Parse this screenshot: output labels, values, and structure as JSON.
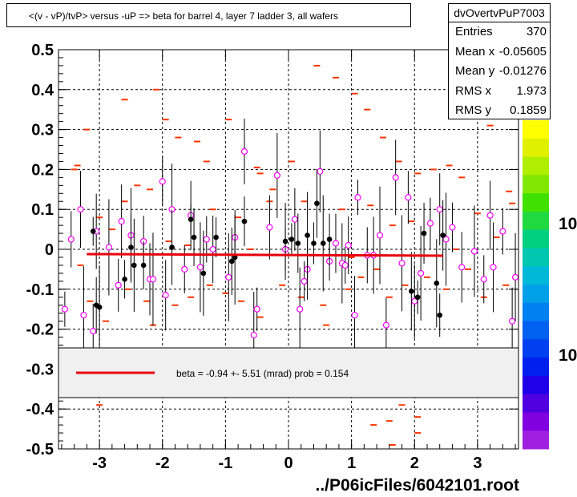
{
  "title": "<(v - vP)/tvP> versus  -uP => beta for barrel 4, layer 7 ladder 3, all wafers",
  "stats": {
    "name": "dvOvertvPuP7003",
    "rows": [
      {
        "label": "Entries",
        "value": "370"
      },
      {
        "label": "Mean x",
        "value": "-0.05605"
      },
      {
        "label": "Mean y",
        "value": "-0.01276"
      },
      {
        "label": "RMS x",
        "value": "1.973"
      },
      {
        "label": "RMS y",
        "value": "0.1859"
      }
    ]
  },
  "legend": {
    "text": "beta =   -0.94 +-  5.51 (mrad) prob = 0.154",
    "line_color": "#e8000b"
  },
  "footer": "../P06icFiles/6042101.root",
  "palette_labels": [
    "10",
    "10"
  ],
  "colors": {
    "fit": "#e8000b",
    "marker_profile": "#ff00ff",
    "marker_black": "#000000",
    "dash": "#ff3300"
  },
  "chart_data": {
    "type": "scatter",
    "xlim": [
      -3.65,
      3.65
    ],
    "ylim": [
      -0.5,
      0.5
    ],
    "grid": true,
    "x_ticks": [
      -3,
      -2,
      -1,
      0,
      1,
      2,
      3
    ],
    "x_tick_labels": [
      "-3",
      "-2",
      "-1",
      "0",
      "1",
      "2",
      "3"
    ],
    "y_ticks": [
      0.5,
      0.4,
      0.3,
      0.2,
      0.1,
      0,
      -0.1,
      -0.2,
      -0.3,
      -0.4,
      -0.5
    ],
    "y_tick_labels": [
      "0.5",
      "0.4",
      "0.3",
      "0.2",
      "0.1",
      "0",
      "-0.1",
      "-0.2",
      "-0.3",
      "-0.4",
      "-0.5"
    ],
    "fit_line": {
      "x": [
        -3.2,
        2.45
      ],
      "y": [
        -0.012,
        -0.016
      ]
    },
    "profile_points": [
      {
        "x": -3.55,
        "y": -0.15
      },
      {
        "x": -3.45,
        "y": 0.025
      },
      {
        "x": -3.3,
        "y": 0.1
      },
      {
        "x": -3.25,
        "y": -0.165
      },
      {
        "x": -3.1,
        "y": -0.205
      },
      {
        "x": -3.05,
        "y": 0.045
      },
      {
        "x": -2.85,
        "y": 0.005
      },
      {
        "x": -2.7,
        "y": -0.09
      },
      {
        "x": -2.65,
        "y": 0.07
      },
      {
        "x": -2.5,
        "y": 0.035
      },
      {
        "x": -2.3,
        "y": 0.02
      },
      {
        "x": -2.2,
        "y": -0.075
      },
      {
        "x": -2.15,
        "y": -0.075
      },
      {
        "x": -2.0,
        "y": 0.17
      },
      {
        "x": -1.95,
        "y": -0.115
      },
      {
        "x": -1.85,
        "y": 0.1
      },
      {
        "x": -1.65,
        "y": -0.05
      },
      {
        "x": -1.55,
        "y": 0.085
      },
      {
        "x": -1.4,
        "y": -0.045
      },
      {
        "x": -1.3,
        "y": 0.025
      },
      {
        "x": -1.2,
        "y": 0.0
      },
      {
        "x": -0.95,
        "y": -0.07
      },
      {
        "x": -0.85,
        "y": 0.03
      },
      {
        "x": -0.7,
        "y": 0.245
      },
      {
        "x": -0.55,
        "y": -0.215
      },
      {
        "x": -0.5,
        "y": -0.15
      },
      {
        "x": -0.3,
        "y": 0.055
      },
      {
        "x": -0.18,
        "y": 0.185
      },
      {
        "x": -0.05,
        "y": 0.0
      },
      {
        "x": 0.1,
        "y": 0.075
      },
      {
        "x": 0.18,
        "y": -0.15
      },
      {
        "x": 0.25,
        "y": -0.08
      },
      {
        "x": 0.3,
        "y": -0.05
      },
      {
        "x": 0.5,
        "y": 0.195
      },
      {
        "x": 0.65,
        "y": -0.03
      },
      {
        "x": 0.75,
        "y": 0.015
      },
      {
        "x": 0.85,
        "y": -0.035
      },
      {
        "x": 0.9,
        "y": -0.04
      },
      {
        "x": 0.95,
        "y": 0.01
      },
      {
        "x": 1.05,
        "y": -0.165
      },
      {
        "x": 1.1,
        "y": 0.13
      },
      {
        "x": 1.25,
        "y": -0.015
      },
      {
        "x": 1.35,
        "y": -0.015
      },
      {
        "x": 1.45,
        "y": 0.035
      },
      {
        "x": 1.55,
        "y": -0.19
      },
      {
        "x": 1.7,
        "y": 0.18
      },
      {
        "x": 1.8,
        "y": -0.035
      },
      {
        "x": 1.9,
        "y": 0.13
      },
      {
        "x": 2.0,
        "y": -0.13
      },
      {
        "x": 2.1,
        "y": -0.06
      },
      {
        "x": 2.25,
        "y": 0.065
      },
      {
        "x": 2.4,
        "y": 0.1
      },
      {
        "x": 2.5,
        "y": 0.025
      },
      {
        "x": 2.6,
        "y": 0.055
      },
      {
        "x": 2.75,
        "y": -0.045
      },
      {
        "x": 2.95,
        "y": -0.005
      },
      {
        "x": 3.1,
        "y": -0.075
      },
      {
        "x": 3.2,
        "y": 0.085
      },
      {
        "x": 3.25,
        "y": -0.045
      },
      {
        "x": 3.4,
        "y": 0.045
      },
      {
        "x": 3.55,
        "y": -0.18
      },
      {
        "x": 3.6,
        "y": -0.07
      }
    ],
    "black_points": [
      {
        "x": -3.1,
        "y": 0.045
      },
      {
        "x": -3.05,
        "y": -0.14
      },
      {
        "x": -3.0,
        "y": -0.145
      },
      {
        "x": -2.6,
        "y": -0.075
      },
      {
        "x": -2.5,
        "y": 0.005
      },
      {
        "x": -2.45,
        "y": -0.04
      },
      {
        "x": -2.3,
        "y": -0.04
      },
      {
        "x": -1.85,
        "y": 0.005
      },
      {
        "x": -1.55,
        "y": 0.075
      },
      {
        "x": -1.5,
        "y": 0.03
      },
      {
        "x": -1.35,
        "y": -0.06
      },
      {
        "x": -1.15,
        "y": 0.03
      },
      {
        "x": -0.9,
        "y": -0.03
      },
      {
        "x": -0.85,
        "y": -0.02
      },
      {
        "x": -0.7,
        "y": 0.07
      },
      {
        "x": -0.05,
        "y": 0.02
      },
      {
        "x": 0.05,
        "y": 0.025
      },
      {
        "x": 0.15,
        "y": 0.015
      },
      {
        "x": 0.3,
        "y": 0.035
      },
      {
        "x": 0.4,
        "y": 0.015
      },
      {
        "x": 0.45,
        "y": 0.115
      },
      {
        "x": 0.55,
        "y": 0.015
      },
      {
        "x": 0.65,
        "y": 0.025
      },
      {
        "x": 1.95,
        "y": -0.105
      },
      {
        "x": 2.05,
        "y": -0.12
      },
      {
        "x": 2.15,
        "y": 0.04
      },
      {
        "x": 2.35,
        "y": -0.085
      },
      {
        "x": 2.4,
        "y": -0.165
      },
      {
        "x": 2.45,
        "y": 0.035
      }
    ],
    "dash_points": [
      {
        "x": 3.55,
        "y": 0.115
      },
      {
        "x": 3.5,
        "y": 0.145
      },
      {
        "x": 3.35,
        "y": 0.365
      },
      {
        "x": 2.85,
        "y": 0.46
      },
      {
        "x": 3.05,
        "y": 0.36
      },
      {
        "x": 3.2,
        "y": 0.31
      },
      {
        "x": -2.6,
        "y": 0.375
      },
      {
        "x": -2.1,
        "y": 0.4
      },
      {
        "x": -1.95,
        "y": 0.325
      },
      {
        "x": -3.2,
        "y": 0.3
      },
      {
        "x": -3.4,
        "y": 0.2
      },
      {
        "x": -3.35,
        "y": 0.21
      },
      {
        "x": -2.6,
        "y": 0.12
      },
      {
        "x": -2.4,
        "y": 0.16
      },
      {
        "x": -2.2,
        "y": 0.15
      },
      {
        "x": -1.75,
        "y": 0.28
      },
      {
        "x": -1.45,
        "y": 0.27
      },
      {
        "x": -1.3,
        "y": 0.22
      },
      {
        "x": -0.95,
        "y": 0.325
      },
      {
        "x": -0.5,
        "y": 0.205
      },
      {
        "x": -0.45,
        "y": 0.19
      },
      {
        "x": -0.25,
        "y": 0.15
      },
      {
        "x": 0.05,
        "y": 0.22
      },
      {
        "x": 0.45,
        "y": 0.46
      },
      {
        "x": 0.75,
        "y": 0.43
      },
      {
        "x": 1.05,
        "y": 0.39
      },
      {
        "x": 1.25,
        "y": 0.35
      },
      {
        "x": 1.5,
        "y": 0.28
      },
      {
        "x": 1.75,
        "y": 0.22
      },
      {
        "x": 2.05,
        "y": 0.19
      },
      {
        "x": 2.3,
        "y": 0.2
      },
      {
        "x": 2.55,
        "y": 0.21
      },
      {
        "x": 2.75,
        "y": 0.18
      },
      {
        "x": 3.0,
        "y": 0.09
      },
      {
        "x": -3.0,
        "y": 0.08
      },
      {
        "x": -2.8,
        "y": 0.05
      },
      {
        "x": -1.2,
        "y": 0.1
      },
      {
        "x": -0.8,
        "y": 0.08
      },
      {
        "x": -0.3,
        "y": 0.12
      },
      {
        "x": 0.25,
        "y": 0.12
      },
      {
        "x": 0.85,
        "y": 0.1
      },
      {
        "x": 1.3,
        "y": 0.11
      },
      {
        "x": 1.65,
        "y": 0.06
      },
      {
        "x": 1.95,
        "y": 0.07
      },
      {
        "x": -3.3,
        "y": -0.04
      },
      {
        "x": -3.15,
        "y": -0.13
      },
      {
        "x": -2.9,
        "y": -0.18
      },
      {
        "x": -2.55,
        "y": -0.1
      },
      {
        "x": -2.25,
        "y": -0.13
      },
      {
        "x": -2.15,
        "y": -0.19
      },
      {
        "x": -1.8,
        "y": -0.14
      },
      {
        "x": -1.55,
        "y": -0.12
      },
      {
        "x": -1.25,
        "y": -0.09
      },
      {
        "x": -1.0,
        "y": -0.11
      },
      {
        "x": -0.75,
        "y": -0.13
      },
      {
        "x": -0.45,
        "y": -0.17
      },
      {
        "x": -0.1,
        "y": -0.09
      },
      {
        "x": 0.2,
        "y": -0.12
      },
      {
        "x": 0.55,
        "y": -0.14
      },
      {
        "x": 0.6,
        "y": -0.19
      },
      {
        "x": 0.95,
        "y": -0.1
      },
      {
        "x": 1.15,
        "y": -0.07
      },
      {
        "x": 1.4,
        "y": -0.05
      },
      {
        "x": 1.6,
        "y": -0.12
      },
      {
        "x": 1.85,
        "y": -0.09
      },
      {
        "x": 2.2,
        "y": -0.07
      },
      {
        "x": 2.5,
        "y": -0.1
      },
      {
        "x": 2.85,
        "y": -0.05
      },
      {
        "x": 3.1,
        "y": -0.12
      },
      {
        "x": 3.45,
        "y": -0.09
      },
      {
        "x": 1.55,
        "y": -0.36
      },
      {
        "x": 1.6,
        "y": -0.43
      },
      {
        "x": 2.05,
        "y": -0.46
      },
      {
        "x": 1.8,
        "y": -0.39
      },
      {
        "x": 2.3,
        "y": -0.35
      },
      {
        "x": 2.05,
        "y": -0.42
      },
      {
        "x": 1.35,
        "y": -0.44
      },
      {
        "x": 1.65,
        "y": -0.49
      },
      {
        "x": -3.0,
        "y": -0.39
      },
      {
        "x": 3.6,
        "y": -0.35
      },
      {
        "x": -1.9,
        "y": 0.02
      },
      {
        "x": -1.6,
        "y": 0.01
      },
      {
        "x": -0.6,
        "y": 0.0
      },
      {
        "x": 1.0,
        "y": -0.02
      },
      {
        "x": 2.65,
        "y": 0.0
      },
      {
        "x": 3.3,
        "y": 0.03
      }
    ]
  }
}
